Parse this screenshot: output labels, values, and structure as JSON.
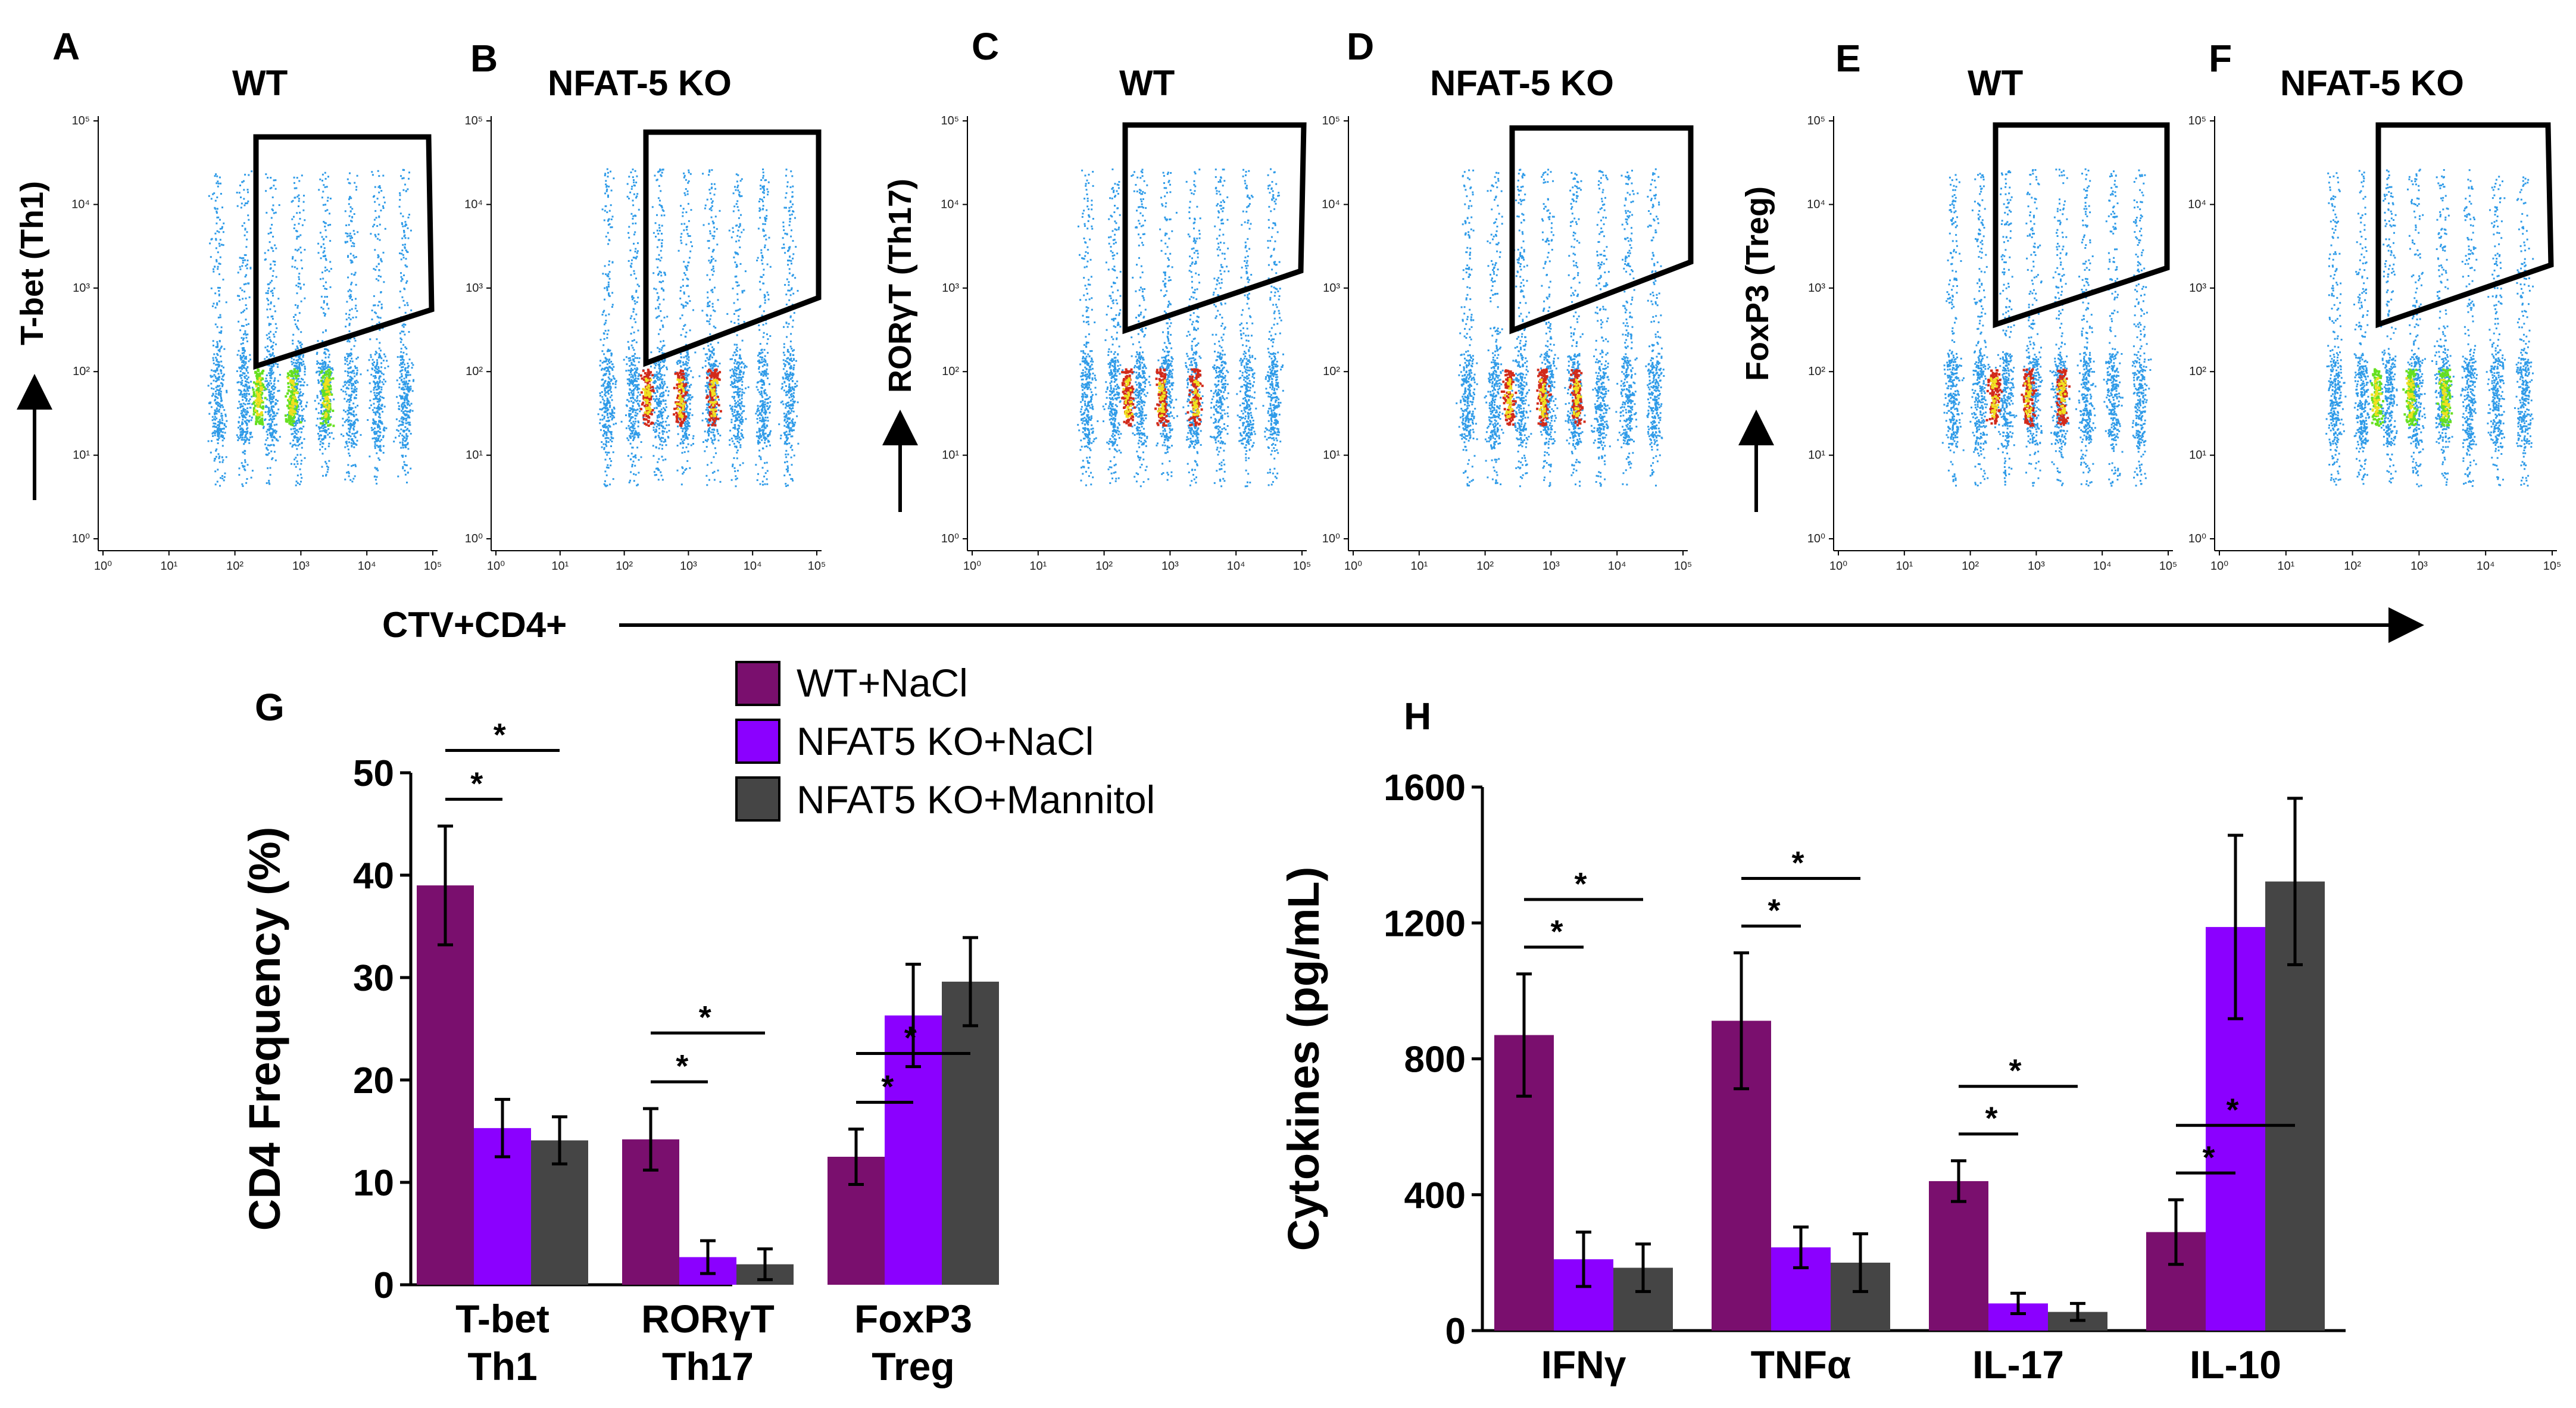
{
  "xaxis_label": "CTV+CD4+",
  "flow_ticks": [
    "10⁰",
    "10¹",
    "10²",
    "10³",
    "10⁴",
    "10⁵"
  ],
  "flow_markers": [
    "T-bet (Th1)",
    "RORγT (Th17)",
    "FoxP3 (Treg)"
  ],
  "flow_panels": [
    {
      "letter": "A",
      "title": "WT",
      "core": "green"
    },
    {
      "letter": "B",
      "title": "NFAT-5 KO",
      "core": "red"
    },
    {
      "letter": "C",
      "title": "WT",
      "core": "red"
    },
    {
      "letter": "D",
      "title": "NFAT-5 KO",
      "core": "red"
    },
    {
      "letter": "E",
      "title": "WT",
      "core": "red"
    },
    {
      "letter": "F",
      "title": "NFAT-5 KO",
      "core": "green"
    }
  ],
  "legend": [
    {
      "label": "WT+NaCl",
      "color": "#7a0f6e"
    },
    {
      "label": "NFAT5 KO+NaCl",
      "color": "#8b00ff"
    },
    {
      "label": "NFAT5 KO+Mannitol",
      "color": "#454545"
    }
  ],
  "chart_data": [
    {
      "panel": "G",
      "type": "bar",
      "ylabel": "CD4 Frequency (%)",
      "ylim": [
        0,
        50
      ],
      "yticks": [
        0,
        10,
        20,
        30,
        40,
        50
      ],
      "categories": [
        [
          "T-bet",
          "Th1"
        ],
        [
          "RORγT",
          "Th17"
        ],
        [
          "FoxP3",
          "Treg"
        ]
      ],
      "series": [
        {
          "name": "WT+NaCl",
          "values": [
            39,
            14.2,
            12.5
          ],
          "errors": [
            5.8,
            3,
            2.7
          ]
        },
        {
          "name": "NFAT5 KO+NaCl",
          "values": [
            15.3,
            2.7,
            26.3
          ],
          "errors": [
            2.8,
            1.6,
            5
          ]
        },
        {
          "name": "NFAT5 KO+Mannitol",
          "values": [
            14.1,
            2,
            29.6
          ],
          "errors": [
            2.3,
            1.5,
            4.3
          ]
        }
      ],
      "significance": "*"
    },
    {
      "panel": "H",
      "type": "bar",
      "ylabel": "Cytokines (pg/mL)",
      "ylim": [
        0,
        1600
      ],
      "yticks": [
        0,
        400,
        800,
        1200,
        1600
      ],
      "categories": [
        "IFNγ",
        "TNFα",
        "IL-17",
        "IL-10"
      ],
      "series": [
        {
          "name": "WT+NaCl",
          "values": [
            870,
            912,
            440,
            290
          ],
          "errors": [
            180,
            200,
            60,
            95
          ]
        },
        {
          "name": "NFAT5 KO+NaCl",
          "values": [
            210,
            245,
            80,
            1188
          ],
          "errors": [
            80,
            60,
            30,
            270
          ]
        },
        {
          "name": "NFAT5 KO+Mannitol",
          "values": [
            185,
            200,
            55,
            1322
          ],
          "errors": [
            70,
            85,
            25,
            245
          ]
        }
      ],
      "significance": "*"
    }
  ]
}
